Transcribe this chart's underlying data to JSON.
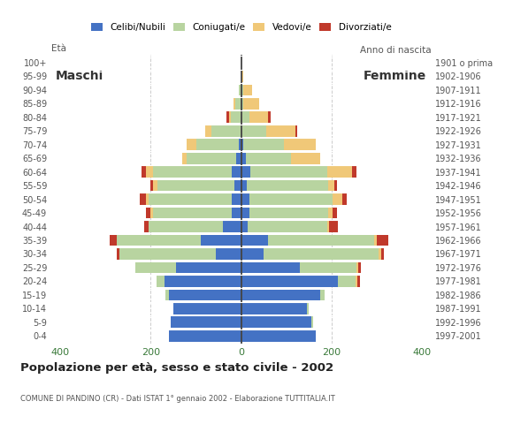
{
  "age_groups": [
    "0-4",
    "5-9",
    "10-14",
    "15-19",
    "20-24",
    "25-29",
    "30-34",
    "35-39",
    "40-44",
    "45-49",
    "50-54",
    "55-59",
    "60-64",
    "65-69",
    "70-74",
    "75-79",
    "80-84",
    "85-89",
    "90-94",
    "95-99",
    "100+"
  ],
  "birth_years": [
    "1997-2001",
    "1992-1996",
    "1987-1991",
    "1982-1986",
    "1977-1981",
    "1972-1976",
    "1967-1971",
    "1962-1966",
    "1957-1961",
    "1952-1956",
    "1947-1951",
    "1942-1946",
    "1937-1941",
    "1932-1936",
    "1927-1931",
    "1922-1926",
    "1917-1921",
    "1912-1916",
    "1907-1911",
    "1902-1906",
    "1901 o prima"
  ],
  "males": {
    "celibi": [
      160,
      155,
      150,
      160,
      170,
      145,
      55,
      90,
      40,
      20,
      20,
      15,
      20,
      10,
      5,
      0,
      0,
      0,
      0,
      0,
      0
    ],
    "coniugati": [
      0,
      0,
      0,
      8,
      18,
      90,
      215,
      185,
      165,
      175,
      185,
      170,
      175,
      110,
      95,
      65,
      22,
      12,
      5,
      0,
      0
    ],
    "vedovi": [
      0,
      0,
      0,
      0,
      0,
      0,
      0,
      0,
      0,
      5,
      5,
      10,
      15,
      10,
      20,
      15,
      5,
      5,
      0,
      0,
      0
    ],
    "divorziati": [
      0,
      0,
      0,
      0,
      0,
      0,
      5,
      15,
      10,
      10,
      15,
      5,
      10,
      0,
      0,
      0,
      5,
      0,
      0,
      0,
      0
    ]
  },
  "females": {
    "nubili": [
      165,
      155,
      145,
      175,
      215,
      130,
      50,
      60,
      15,
      18,
      18,
      12,
      20,
      10,
      5,
      0,
      0,
      0,
      0,
      0,
      0
    ],
    "coniugate": [
      0,
      5,
      5,
      10,
      38,
      125,
      255,
      235,
      175,
      175,
      185,
      180,
      170,
      100,
      90,
      55,
      18,
      5,
      5,
      0,
      0
    ],
    "vedove": [
      0,
      0,
      0,
      0,
      5,
      5,
      5,
      5,
      5,
      10,
      20,
      15,
      55,
      65,
      70,
      65,
      42,
      35,
      20,
      5,
      0
    ],
    "divorziate": [
      0,
      0,
      0,
      0,
      5,
      5,
      5,
      25,
      20,
      10,
      10,
      5,
      10,
      0,
      0,
      5,
      5,
      0,
      0,
      0,
      0
    ]
  },
  "colors": {
    "celibi": "#4472c4",
    "coniugati": "#b8d4a0",
    "vedovi": "#f0c878",
    "divorziati": "#c0392b"
  },
  "xlim": 420,
  "title": "Popolazione per età, sesso e stato civile - 2002",
  "subtitle": "COMUNE DI PANDINO (CR) - Dati ISTAT 1° gennaio 2002 - Elaborazione TUTTITALIA.IT",
  "label_eta": "Età",
  "label_anno": "Anno di nascita",
  "label_maschi": "Maschi",
  "label_femmine": "Femmine",
  "legend": [
    "Celibi/Nubili",
    "Coniugati/e",
    "Vedovi/e",
    "Divorziati/e"
  ],
  "bg_color": "#ffffff",
  "grid_color": "#cccccc",
  "tick_color": "#3a7a3a"
}
